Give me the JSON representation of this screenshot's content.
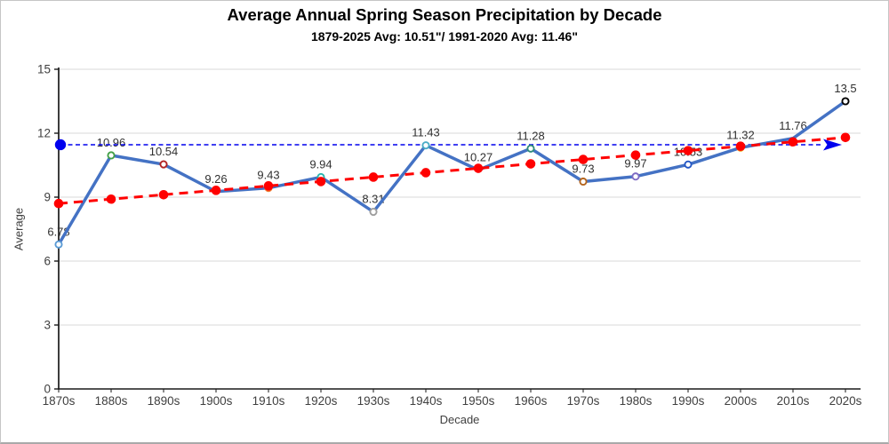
{
  "chart_data": {
    "type": "line",
    "title": "Average Annual Spring Season Precipitation by Decade",
    "subtitle": "1879-2025 Avg: 10.51\"/ 1991-2020 Avg: 11.46\"",
    "xlabel": "Decade",
    "ylabel": "Average",
    "ylim": [
      0,
      15
    ],
    "yticks": [
      0,
      3,
      6,
      9,
      12,
      15
    ],
    "grid": "horizontal-only",
    "legend": "none",
    "categories": [
      "1870s",
      "1880s",
      "1890s",
      "1900s",
      "1910s",
      "1920s",
      "1930s",
      "1940s",
      "1950s",
      "1960s",
      "1970s",
      "1980s",
      "1990s",
      "2000s",
      "2010s",
      "2020s"
    ],
    "series": [
      {
        "name": "average-spring-precipitation-by-decade",
        "line_color": "#4472C4",
        "marker_style": "open-circle-white-fill",
        "values": [
          6.78,
          10.96,
          10.54,
          9.26,
          9.43,
          9.94,
          8.31,
          11.43,
          10.27,
          11.28,
          9.73,
          9.97,
          10.53,
          11.32,
          11.76,
          13.5
        ],
        "data_labels": [
          "6.78",
          "10.96",
          "10.54",
          "9.26",
          "9.43",
          "9.94",
          "8.31",
          "11.43",
          "10.27",
          "11.28",
          "9.73",
          "9.97",
          "10.53",
          "11.32",
          "11.76",
          "13.5"
        ],
        "marker_colors": [
          "#5B9BD5",
          "#43A047",
          "#B22222",
          null,
          "#ED7D31",
          "#2AB5AE",
          "#9E9E9E",
          "#4BACC6",
          null,
          "#2E8B7B",
          "#B5651D",
          "#7E6BC4",
          "#2457C5",
          "#EDB120",
          null,
          "#000000"
        ]
      }
    ],
    "trend_line": {
      "name": "linear-trend",
      "color": "#FF0000",
      "style": "dashed",
      "start_value": 8.7,
      "end_value": 11.8,
      "markers": "filled-red-dots"
    },
    "reference_line": {
      "name": "1991-2020-average",
      "value": 11.46,
      "color": "#0000EE",
      "style": "dashed",
      "start_marker": "filled-circle",
      "end_marker": "arrow-right"
    }
  }
}
